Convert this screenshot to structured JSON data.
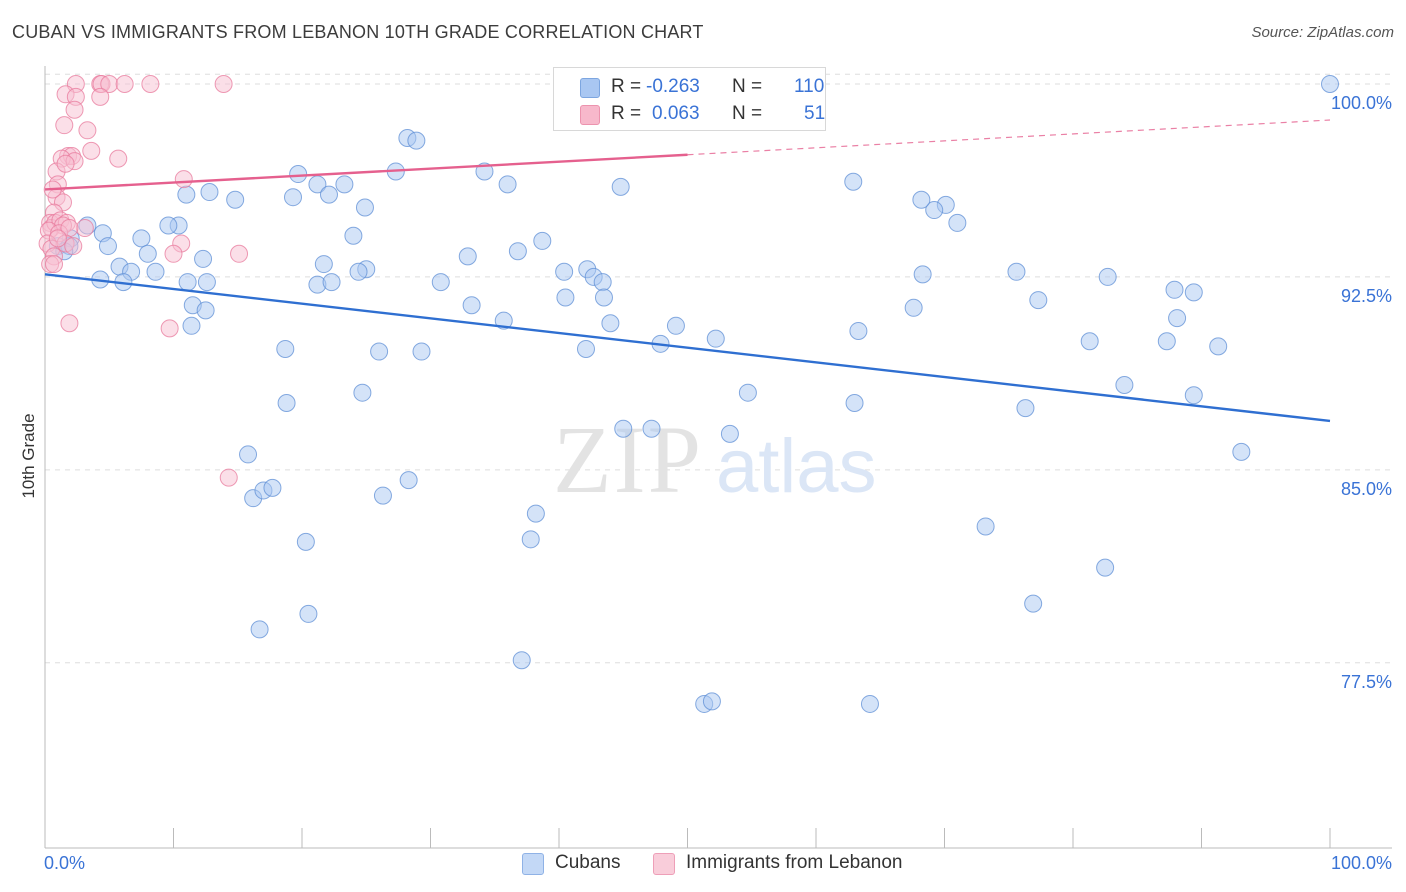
{
  "header": {
    "title": "CUBAN VS IMMIGRANTS FROM LEBANON 10TH GRADE CORRELATION CHART",
    "source": "Source: ZipAtlas.com"
  },
  "watermark": {
    "zip": "ZIP",
    "atlas": "atlas"
  },
  "legend": {
    "rows": [
      {
        "r_label": "R =",
        "r_value": "-0.263",
        "n_label": "N =",
        "n_value": "110",
        "color": "#a9c7f2"
      },
      {
        "r_label": "R =",
        "r_value": "0.063",
        "n_label": "N =",
        "n_value": "51",
        "color": "#f7b8cb"
      }
    ],
    "series": [
      {
        "label": "Cubans",
        "color": "#a9c7f2"
      },
      {
        "label": "Immigrants from Lebanon",
        "color": "#f7b8cb"
      }
    ]
  },
  "colors": {
    "blue_point": "#a9c7f2",
    "blue_stroke": "#5f8fd6",
    "blue_line": "#2f6fd1",
    "pink_point": "#f7c0d1",
    "pink_stroke": "#e8799c",
    "pink_line": "#e5608e",
    "tick_text": "#3a73d6",
    "grid": "#dddddd"
  },
  "chart_data": {
    "type": "scatter",
    "title": "CUBAN VS IMMIGRANTS FROM LEBANON 10TH GRADE CORRELATION CHART",
    "xlabel": "",
    "ylabel": "10th Grade",
    "xlim": [
      0,
      100
    ],
    "ylim": [
      70.3,
      100.7
    ],
    "x_tick_labels": [
      "0.0%",
      "100.0%"
    ],
    "y_ticks": [
      {
        "value": 100.0,
        "label": "100.0%"
      },
      {
        "value": 92.5,
        "label": "92.5%"
      },
      {
        "value": 85.0,
        "label": "85.0%"
      },
      {
        "value": 77.5,
        "label": "77.5%"
      }
    ],
    "grid": true,
    "legend_position": "top-center",
    "series": [
      {
        "name": "Cubans",
        "r": -0.263,
        "n": 110,
        "trend": {
          "x": [
            0,
            100
          ],
          "y": [
            92.6,
            86.9
          ],
          "dashed_from": null
        },
        "points": [
          [
            100,
            100
          ],
          [
            28.2,
            97.9
          ],
          [
            28.9,
            97.8
          ],
          [
            34.2,
            96.6
          ],
          [
            19.7,
            96.5
          ],
          [
            27.3,
            96.6
          ],
          [
            21.2,
            96.1
          ],
          [
            23.3,
            96.1
          ],
          [
            36.0,
            96.1
          ],
          [
            62.9,
            96.2
          ],
          [
            11.0,
            95.7
          ],
          [
            14.8,
            95.5
          ],
          [
            19.3,
            95.6
          ],
          [
            22.1,
            95.7
          ],
          [
            44.8,
            96.0
          ],
          [
            70.1,
            95.3
          ],
          [
            69.2,
            95.1
          ],
          [
            24.9,
            95.2
          ],
          [
            71.0,
            94.6
          ],
          [
            10.4,
            94.5
          ],
          [
            9.6,
            94.5
          ],
          [
            3.3,
            94.5
          ],
          [
            4.5,
            94.2
          ],
          [
            2.0,
            94.0
          ],
          [
            7.5,
            94.0
          ],
          [
            12.8,
            95.8
          ],
          [
            24.0,
            94.1
          ],
          [
            38.7,
            93.9
          ],
          [
            1.0,
            93.7
          ],
          [
            1.9,
            93.7
          ],
          [
            4.9,
            93.7
          ],
          [
            1.5,
            93.5
          ],
          [
            36.8,
            93.5
          ],
          [
            8.0,
            93.4
          ],
          [
            32.9,
            93.3
          ],
          [
            12.3,
            93.2
          ],
          [
            21.7,
            93.0
          ],
          [
            5.8,
            92.9
          ],
          [
            6.7,
            92.7
          ],
          [
            8.6,
            92.7
          ],
          [
            25.0,
            92.8
          ],
          [
            24.4,
            92.7
          ],
          [
            75.6,
            92.7
          ],
          [
            40.4,
            92.7
          ],
          [
            42.2,
            92.8
          ],
          [
            68.3,
            92.6
          ],
          [
            82.7,
            92.5
          ],
          [
            21.2,
            92.2
          ],
          [
            4.3,
            92.4
          ],
          [
            6.1,
            92.3
          ],
          [
            11.1,
            92.3
          ],
          [
            12.6,
            92.3
          ],
          [
            22.3,
            92.3
          ],
          [
            30.8,
            92.3
          ],
          [
            42.7,
            92.5
          ],
          [
            43.4,
            92.3
          ],
          [
            87.9,
            92.0
          ],
          [
            89.4,
            91.9
          ],
          [
            40.5,
            91.7
          ],
          [
            43.5,
            91.7
          ],
          [
            11.5,
            91.4
          ],
          [
            12.5,
            91.2
          ],
          [
            33.2,
            91.4
          ],
          [
            77.3,
            91.6
          ],
          [
            67.6,
            91.3
          ],
          [
            35.7,
            90.8
          ],
          [
            44.0,
            90.7
          ],
          [
            88.1,
            90.9
          ],
          [
            11.4,
            90.6
          ],
          [
            49.1,
            90.6
          ],
          [
            52.2,
            90.1
          ],
          [
            63.3,
            90.4
          ],
          [
            81.3,
            90.0
          ],
          [
            87.3,
            90.0
          ],
          [
            91.3,
            89.8
          ],
          [
            18.7,
            89.7
          ],
          [
            26.0,
            89.6
          ],
          [
            29.3,
            89.6
          ],
          [
            42.1,
            89.7
          ],
          [
            47.9,
            89.9
          ],
          [
            84.0,
            88.3
          ],
          [
            89.4,
            87.9
          ],
          [
            24.7,
            88.0
          ],
          [
            54.7,
            88.0
          ],
          [
            18.8,
            87.6
          ],
          [
            63.0,
            87.6
          ],
          [
            76.3,
            87.4
          ],
          [
            45.0,
            86.6
          ],
          [
            47.2,
            86.6
          ],
          [
            53.3,
            86.4
          ],
          [
            93.1,
            85.7
          ],
          [
            15.8,
            85.6
          ],
          [
            16.2,
            83.9
          ],
          [
            17.0,
            84.2
          ],
          [
            17.7,
            84.3
          ],
          [
            26.3,
            84.0
          ],
          [
            28.3,
            84.6
          ],
          [
            38.2,
            83.3
          ],
          [
            37.8,
            82.3
          ],
          [
            73.2,
            82.8
          ],
          [
            20.3,
            82.2
          ],
          [
            82.5,
            81.2
          ],
          [
            76.9,
            79.8
          ],
          [
            20.5,
            79.4
          ],
          [
            16.7,
            78.8
          ],
          [
            37.1,
            77.6
          ],
          [
            51.3,
            75.9
          ],
          [
            64.2,
            75.9
          ],
          [
            51.9,
            76.0
          ],
          [
            68.2,
            95.5
          ]
        ]
      },
      {
        "name": "Immigrants from Lebanon",
        "r": 0.063,
        "n": 51,
        "trend": {
          "x": [
            0,
            100
          ],
          "y": [
            95.9,
            98.6
          ],
          "dashed_from": 50
        },
        "points": [
          [
            2.4,
            100.0
          ],
          [
            4.3,
            100.0
          ],
          [
            4.4,
            100.0
          ],
          [
            5.0,
            100.0
          ],
          [
            6.2,
            100.0
          ],
          [
            8.2,
            100.0
          ],
          [
            13.9,
            100.0
          ],
          [
            1.6,
            99.6
          ],
          [
            2.4,
            99.5
          ],
          [
            4.3,
            99.5
          ],
          [
            2.3,
            99.0
          ],
          [
            1.5,
            98.4
          ],
          [
            3.3,
            98.2
          ],
          [
            3.6,
            97.4
          ],
          [
            1.8,
            97.2
          ],
          [
            2.1,
            97.2
          ],
          [
            1.3,
            97.1
          ],
          [
            2.3,
            97.0
          ],
          [
            5.7,
            97.1
          ],
          [
            0.9,
            96.6
          ],
          [
            1.6,
            96.9
          ],
          [
            1.0,
            96.1
          ],
          [
            0.9,
            95.6
          ],
          [
            1.4,
            95.4
          ],
          [
            10.8,
            96.3
          ],
          [
            0.7,
            95.0
          ],
          [
            0.4,
            94.6
          ],
          [
            0.5,
            94.4
          ],
          [
            0.8,
            94.6
          ],
          [
            1.2,
            94.7
          ],
          [
            1.7,
            94.6
          ],
          [
            1.4,
            94.5
          ],
          [
            0.3,
            94.3
          ],
          [
            1.1,
            94.2
          ],
          [
            3.1,
            94.4
          ],
          [
            1.9,
            94.4
          ],
          [
            0.2,
            93.8
          ],
          [
            0.5,
            93.6
          ],
          [
            0.7,
            93.3
          ],
          [
            10.6,
            93.8
          ],
          [
            15.1,
            93.4
          ],
          [
            10.0,
            93.4
          ],
          [
            0.4,
            93.0
          ],
          [
            0.7,
            93.0
          ],
          [
            1.6,
            93.8
          ],
          [
            1.9,
            90.7
          ],
          [
            9.7,
            90.5
          ],
          [
            14.3,
            84.7
          ],
          [
            0.6,
            95.9
          ],
          [
            1.0,
            94.0
          ],
          [
            2.2,
            93.7
          ]
        ]
      }
    ]
  }
}
